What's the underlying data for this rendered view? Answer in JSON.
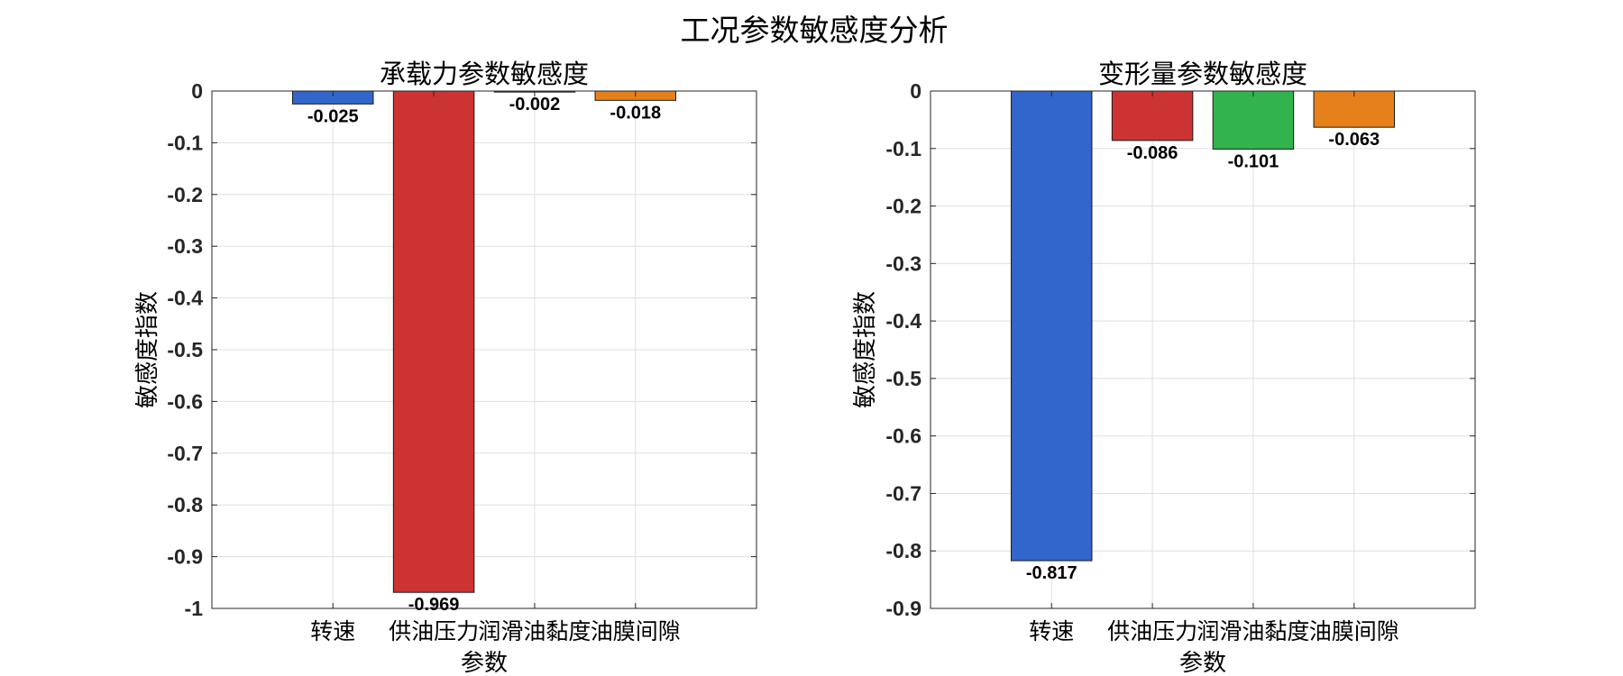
{
  "figure": {
    "title": "工况参数敏感度分析"
  },
  "chart_data": [
    {
      "type": "bar",
      "title": "承载力参数敏感度",
      "xlabel": "参数",
      "ylabel": "敏感度指数",
      "categories": [
        "转速",
        "供油压力",
        "润滑油黏度",
        "油膜间隙"
      ],
      "values": [
        -0.025,
        -0.969,
        -0.002,
        -0.018
      ],
      "data_labels": [
        "-0.025",
        "-0.969",
        "-0.002",
        "-0.018"
      ],
      "colors": [
        "#3366CC",
        "#CC3333",
        "#33B34D",
        "#E6801A"
      ],
      "ylim": [
        -1,
        0
      ],
      "ytick_labels": [
        "0",
        "-0.1",
        "-0.2",
        "-0.3",
        "-0.4",
        "-0.5",
        "-0.6",
        "-0.7",
        "-0.8",
        "-0.9",
        "-1"
      ],
      "grid": true
    },
    {
      "type": "bar",
      "title": "变形量参数敏感度",
      "xlabel": "参数",
      "ylabel": "敏感度指数",
      "categories": [
        "转速",
        "供油压力",
        "润滑油黏度",
        "油膜间隙"
      ],
      "values": [
        -0.817,
        -0.086,
        -0.101,
        -0.063
      ],
      "data_labels": [
        "-0.817",
        "-0.086",
        "-0.101",
        "-0.063"
      ],
      "colors": [
        "#3366CC",
        "#CC3333",
        "#33B34D",
        "#E6801A"
      ],
      "ylim": [
        -0.9,
        0
      ],
      "ytick_labels": [
        "0",
        "-0.1",
        "-0.2",
        "-0.3",
        "-0.4",
        "-0.5",
        "-0.6",
        "-0.7",
        "-0.8",
        "-0.9"
      ],
      "grid": true
    }
  ]
}
